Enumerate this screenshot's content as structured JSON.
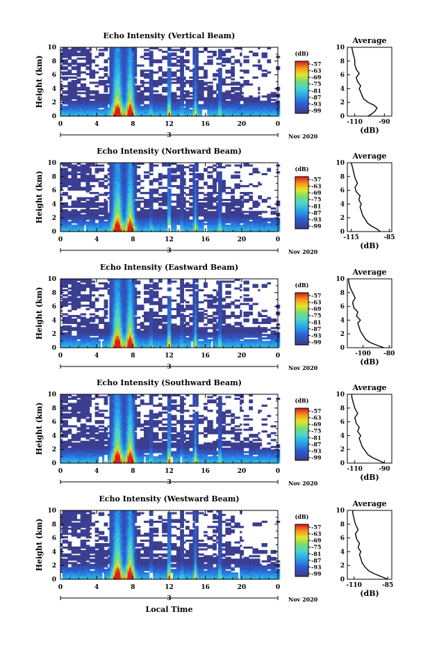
{
  "chart_data": [
    {
      "type": "heatmap",
      "title": "Echo Intensity (Vertical Beam)",
      "ylabel": "Height (km)",
      "xlabel": "",
      "x_ticks": [
        "0",
        "4",
        "8",
        "12",
        "16",
        "20",
        "0"
      ],
      "y_ticks": [
        "0",
        "2",
        "4",
        "6",
        "8",
        "10"
      ],
      "xlim": [
        0,
        24
      ],
      "ylim": [
        0,
        10
      ],
      "date_day": "3",
      "date_label": "Nov 2020",
      "colorbar": {
        "title": "(dB)",
        "ticks": [
          "-57",
          "-63",
          "-69",
          "-75",
          "-81",
          "-87",
          "-93",
          "-99"
        ]
      },
      "profile": {
        "title": "Average",
        "xlabel": "(dB)",
        "xticks": [
          "-110",
          "-90"
        ],
        "xlim": [
          -115,
          -85
        ],
        "points": [
          [
            -101,
            0.0
          ],
          [
            -98,
            0.4
          ],
          [
            -96,
            0.8
          ],
          [
            -95,
            1.2
          ],
          [
            -97,
            1.6
          ],
          [
            -101,
            2.0
          ],
          [
            -104,
            2.5
          ],
          [
            -105,
            3.0
          ],
          [
            -106,
            3.5
          ],
          [
            -107,
            4.0
          ],
          [
            -106,
            4.4
          ],
          [
            -108,
            5.0
          ],
          [
            -109,
            5.6
          ],
          [
            -107,
            6.2
          ],
          [
            -109,
            6.8
          ],
          [
            -110,
            7.5
          ],
          [
            -110,
            8.2
          ],
          [
            -111,
            9.0
          ],
          [
            -112,
            10.0
          ]
        ]
      }
    },
    {
      "type": "heatmap",
      "title": "Echo Intensity (Northward Beam)",
      "ylabel": "Height (km)",
      "xlabel": "",
      "x_ticks": [
        "0",
        "4",
        "8",
        "12",
        "16",
        "20",
        "0"
      ],
      "y_ticks": [
        "0",
        "2",
        "4",
        "6",
        "8",
        "10"
      ],
      "xlim": [
        0,
        24
      ],
      "ylim": [
        0,
        10
      ],
      "date_day": "3",
      "date_label": "Nov 2020",
      "colorbar": {
        "title": "(dB)",
        "ticks": [
          "-57",
          "-63",
          "-69",
          "-75",
          "-81",
          "-87",
          "-93",
          "-99"
        ]
      },
      "profile": {
        "title": "Average",
        "xlabel": "(dB)",
        "xticks": [
          "-115",
          "-85"
        ],
        "xlim": [
          -118,
          -83
        ],
        "points": [
          [
            -92,
            0.0
          ],
          [
            -95,
            0.4
          ],
          [
            -99,
            0.8
          ],
          [
            -102,
            1.2
          ],
          [
            -104,
            1.8
          ],
          [
            -106,
            2.4
          ],
          [
            -107,
            3.0
          ],
          [
            -108,
            3.6
          ],
          [
            -107,
            4.0
          ],
          [
            -109,
            4.6
          ],
          [
            -108,
            5.2
          ],
          [
            -111,
            5.8
          ],
          [
            -112,
            6.4
          ],
          [
            -110,
            7.0
          ],
          [
            -112,
            7.8
          ],
          [
            -113,
            8.6
          ],
          [
            -114,
            9.4
          ],
          [
            -115,
            10.0
          ]
        ]
      }
    },
    {
      "type": "heatmap",
      "title": "Echo Intensity (Eastward Beam)",
      "ylabel": "Height (km)",
      "xlabel": "",
      "x_ticks": [
        "0",
        "4",
        "8",
        "12",
        "16",
        "20",
        "0"
      ],
      "y_ticks": [
        "0",
        "2",
        "4",
        "6",
        "8",
        "10"
      ],
      "xlim": [
        0,
        24
      ],
      "ylim": [
        0,
        10
      ],
      "date_day": "3",
      "date_label": "Nov 2020",
      "colorbar": {
        "title": "(dB)",
        "ticks": [
          "-57",
          "-63",
          "-69",
          "-75",
          "-81",
          "-87",
          "-93",
          "-99"
        ]
      },
      "profile": {
        "title": "Average",
        "xlabel": "(dB)",
        "xticks": [
          "-100",
          "-80"
        ],
        "xlim": [
          -112,
          -78
        ],
        "points": [
          [
            -84,
            0.0
          ],
          [
            -90,
            0.4
          ],
          [
            -95,
            0.8
          ],
          [
            -98,
            1.2
          ],
          [
            -100,
            1.8
          ],
          [
            -102,
            2.4
          ],
          [
            -103,
            3.0
          ],
          [
            -104,
            3.6
          ],
          [
            -102,
            4.0
          ],
          [
            -105,
            4.6
          ],
          [
            -104,
            5.2
          ],
          [
            -107,
            5.8
          ],
          [
            -108,
            6.6
          ],
          [
            -106,
            7.2
          ],
          [
            -108,
            8.0
          ],
          [
            -110,
            8.8
          ],
          [
            -111,
            9.6
          ],
          [
            -111,
            10.0
          ]
        ]
      }
    },
    {
      "type": "heatmap",
      "title": "Echo Intensity (Southward Beam)",
      "ylabel": "Height (km)",
      "xlabel": "",
      "x_ticks": [
        "0",
        "4",
        "8",
        "12",
        "16",
        "20",
        "0"
      ],
      "y_ticks": [
        "0",
        "2",
        "4",
        "6",
        "8",
        "10"
      ],
      "xlim": [
        0,
        24
      ],
      "ylim": [
        0,
        10
      ],
      "date_day": "3",
      "date_label": "Nov 2020",
      "colorbar": {
        "title": "(dB)",
        "ticks": [
          "-57",
          "-63",
          "-69",
          "-75",
          "-81",
          "-87",
          "-93",
          "-99"
        ]
      },
      "profile": {
        "title": "Average",
        "xlabel": "(dB)",
        "xticks": [
          "-110",
          "-90"
        ],
        "xlim": [
          -115,
          -85
        ],
        "points": [
          [
            -90,
            0.0
          ],
          [
            -94,
            0.4
          ],
          [
            -98,
            0.8
          ],
          [
            -101,
            1.2
          ],
          [
            -103,
            1.8
          ],
          [
            -105,
            2.4
          ],
          [
            -106,
            3.0
          ],
          [
            -107,
            3.6
          ],
          [
            -106,
            4.0
          ],
          [
            -108,
            4.6
          ],
          [
            -107,
            5.2
          ],
          [
            -109,
            5.8
          ],
          [
            -110,
            6.6
          ],
          [
            -108,
            7.2
          ],
          [
            -110,
            8.0
          ],
          [
            -111,
            8.8
          ],
          [
            -112,
            9.6
          ],
          [
            -112,
            10.0
          ]
        ]
      }
    },
    {
      "type": "heatmap",
      "title": "Echo Intensity (Westward Beam)",
      "ylabel": "Height (km)",
      "xlabel": "Local Time",
      "x_ticks": [
        "0",
        "4",
        "8",
        "12",
        "16",
        "20",
        "0"
      ],
      "y_ticks": [
        "0",
        "2",
        "4",
        "6",
        "8",
        "10"
      ],
      "xlim": [
        0,
        24
      ],
      "ylim": [
        0,
        10
      ],
      "date_day": "3",
      "date_label": "Nov 2020",
      "colorbar": {
        "title": "(dB)",
        "ticks": [
          "-57",
          "-63",
          "-69",
          "-75",
          "-81",
          "-87",
          "-93",
          "-99"
        ]
      },
      "profile": {
        "title": "Average",
        "xlabel": "(dB)",
        "xticks": [
          "-110",
          "-85"
        ],
        "xlim": [
          -115,
          -82
        ],
        "points": [
          [
            -85,
            0.0
          ],
          [
            -90,
            0.4
          ],
          [
            -95,
            0.8
          ],
          [
            -99,
            1.2
          ],
          [
            -102,
            1.8
          ],
          [
            -104,
            2.4
          ],
          [
            -105,
            3.0
          ],
          [
            -106,
            3.6
          ],
          [
            -105,
            4.0
          ],
          [
            -107,
            4.6
          ],
          [
            -106,
            5.2
          ],
          [
            -108,
            5.8
          ],
          [
            -109,
            6.6
          ],
          [
            -107,
            7.2
          ],
          [
            -109,
            8.0
          ],
          [
            -110,
            8.8
          ],
          [
            -111,
            9.6
          ],
          [
            -111,
            10.0
          ]
        ]
      }
    }
  ]
}
